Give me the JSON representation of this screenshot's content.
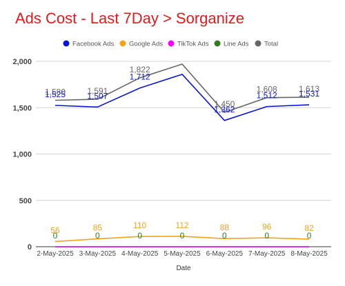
{
  "chart_data": {
    "type": "line",
    "title": "Ads Cost - Last 7Day > Sorganize",
    "xlabel": "Date",
    "ylabel": "",
    "categories": [
      "2-May-2025",
      "3-May-2025",
      "4-May-2025",
      "5-May-2025",
      "6-May-2025",
      "7-May-2025",
      "8-May-2025"
    ],
    "ylim": [
      0,
      2000
    ],
    "yticks": [
      0,
      500,
      1000,
      1500,
      2000
    ],
    "ytick_labels": [
      "0",
      "500",
      "1,000",
      "1,500",
      "2,000"
    ],
    "grid": true,
    "legend_position": "top",
    "series": [
      {
        "name": "Facebook Ads",
        "color": "#0a14d8",
        "values": [
          1525,
          1507,
          1712,
          1860,
          1362,
          1512,
          1531
        ],
        "labels": [
          "1,525",
          "1,507",
          "1,712",
          "",
          "1,362",
          "1,512",
          "1,531"
        ]
      },
      {
        "name": "Google Ads",
        "color": "#f4a316",
        "values": [
          56,
          85,
          110,
          112,
          88,
          96,
          82
        ],
        "labels": [
          "56",
          "85",
          "110",
          "112",
          "88",
          "96",
          "82"
        ]
      },
      {
        "name": "TikTok Ads",
        "color": "#ff00ff",
        "values": [
          0,
          0,
          0,
          0,
          0,
          0,
          0
        ],
        "labels": [
          "",
          "",
          "",
          "",
          "",
          "",
          ""
        ]
      },
      {
        "name": "Line Ads",
        "color": "#2f7d1e",
        "values": [
          0,
          0,
          0,
          0,
          0,
          0,
          0
        ],
        "labels": [
          "0",
          "0",
          "0",
          "0",
          "0",
          "0",
          "0"
        ]
      },
      {
        "name": "Total",
        "color": "#666666",
        "values": [
          1580,
          1591,
          1822,
          1970,
          1450,
          1608,
          1613
        ],
        "labels": [
          "1,580",
          "1,591",
          "1,822",
          "",
          "1,450",
          "1,608",
          "1,613"
        ]
      }
    ]
  }
}
